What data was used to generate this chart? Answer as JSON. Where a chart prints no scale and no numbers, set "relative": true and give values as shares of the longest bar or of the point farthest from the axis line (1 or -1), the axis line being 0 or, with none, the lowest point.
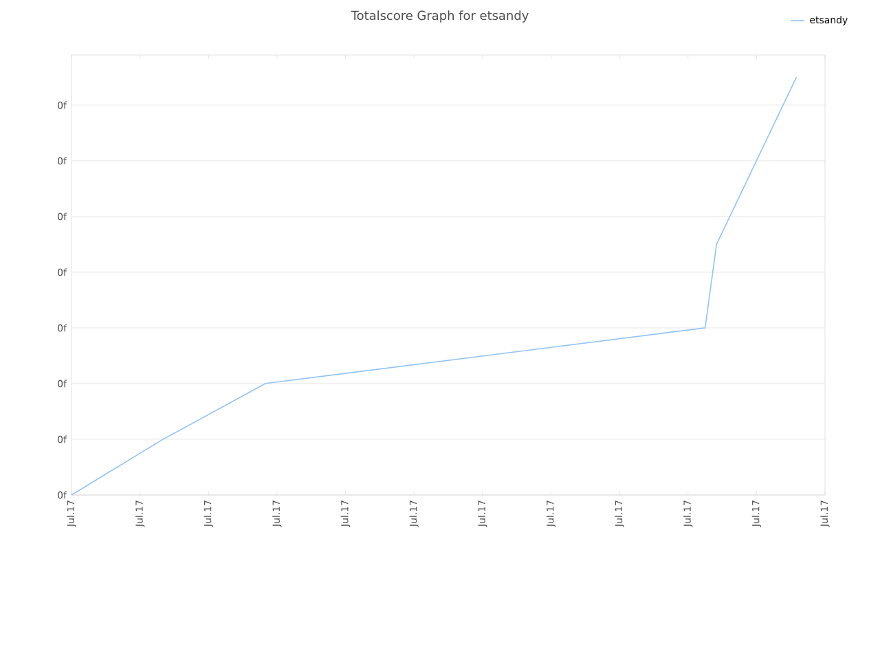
{
  "chart_data": {
    "type": "line",
    "title": "Totalscore Graph for etsandy",
    "relative": true,
    "categories": [
      "Jul.17",
      null,
      null,
      null,
      null,
      null,
      null,
      null,
      null,
      null,
      null,
      null,
      "Jul.17",
      null,
      null,
      null,
      null,
      null,
      null,
      null,
      null,
      null,
      null,
      null,
      "Jul.17",
      null,
      null,
      null,
      null,
      null,
      null,
      null,
      null,
      null,
      null,
      null,
      "Jul.17",
      null,
      null,
      null,
      null,
      null,
      null,
      null,
      null,
      null,
      null,
      null,
      "Jul.17",
      null,
      null,
      null,
      null,
      null,
      null,
      null,
      null,
      null,
      null,
      null,
      "Jul.17",
      null,
      null,
      null,
      null,
      null,
      null,
      null,
      null,
      null,
      null,
      null,
      "Jul.17",
      null,
      null,
      null,
      null,
      null,
      null,
      null,
      null,
      null,
      null,
      null,
      "Jul.17",
      null,
      null,
      null,
      null,
      null,
      null,
      null,
      null,
      null,
      null,
      null,
      "Jul.17",
      null,
      null,
      null,
      null,
      null,
      null,
      null,
      null,
      null,
      null,
      null,
      "Jul.17",
      null,
      null,
      null,
      null,
      null,
      null,
      null,
      null,
      null,
      null,
      null,
      "Jul.17",
      null,
      null,
      null,
      null,
      null,
      null,
      null,
      null,
      null,
      null,
      null,
      "Jul.17"
    ],
    "series": [
      {
        "name": "etsandy",
        "color": "#90c4f5",
        "values": [
          0,
          null,
          null,
          null,
          null,
          null,
          null,
          null,
          null,
          null,
          null,
          null,
          null,
          null,
          null,
          null,
          0.133,
          null,
          null,
          null,
          null,
          null,
          null,
          null,
          null,
          null,
          null,
          null,
          null,
          null,
          null,
          null,
          null,
          null,
          0.267,
          null,
          null,
          null,
          null,
          null,
          null,
          null,
          null,
          null,
          null,
          null,
          null,
          null,
          null,
          null,
          null,
          null,
          null,
          null,
          null,
          null,
          null,
          null,
          null,
          null,
          null,
          null,
          null,
          null,
          null,
          null,
          null,
          null,
          null,
          null,
          null,
          null,
          null,
          null,
          null,
          null,
          null,
          null,
          null,
          null,
          null,
          null,
          null,
          null,
          null,
          null,
          null,
          null,
          null,
          null,
          null,
          null,
          null,
          null,
          null,
          null,
          null,
          null,
          null,
          null,
          null,
          null,
          null,
          null,
          null,
          null,
          null,
          null,
          null,
          null,
          null,
          0.4,
          null,
          0.6,
          null,
          null,
          null,
          null,
          null,
          null,
          null,
          null,
          null,
          null,
          null,
          null,
          null,
          1,
          null,
          null,
          null,
          null,
          null
        ]
      }
    ],
    "annotations": [
      "0f",
      "0f",
      "0f",
      "0f",
      "0f",
      "0f",
      "0f",
      "0f"
    ],
    "grid": "y",
    "legend": "top right",
    "marker": "none",
    "line_style": "solid"
  }
}
